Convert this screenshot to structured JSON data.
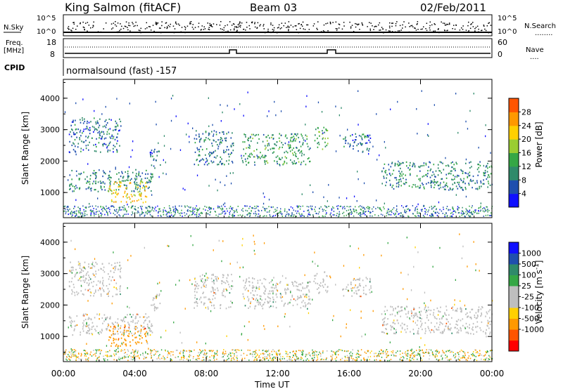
{
  "header": {
    "station": "King Salmon (fitACF)",
    "beam": "Beam 03",
    "date": "02/Feb/2011"
  },
  "noise_panel": {
    "left_label": "N.Sky",
    "right_label": "N.Search",
    "right_line": "........",
    "left_ticks": [
      "10^5",
      "10^0"
    ],
    "right_ticks": [
      "10^5",
      "10^0"
    ]
  },
  "freq_panel": {
    "left_label_1": "Freq.",
    "left_label_2": "[MHz]",
    "right_label": "Nave",
    "right_line": "....",
    "left_ticks": [
      "18",
      "8"
    ],
    "right_ticks": [
      "60",
      "0"
    ]
  },
  "cpid_panel": {
    "label": "CPID",
    "text": "normalsound (fast) -157"
  },
  "colors": {
    "power": [
      "#1010ff",
      "#1f4fae",
      "#2f8a6a",
      "#35a745",
      "#9acd32",
      "#ffd000",
      "#ff9900",
      "#ff5500",
      "#ff0000"
    ],
    "velocity": [
      "#ff0000",
      "#ff5500",
      "#ff9900",
      "#ffd000",
      "#bebebe",
      "#bebebe",
      "#35a745",
      "#2f8a6a",
      "#1f4fae",
      "#1010ff"
    ]
  },
  "chart_data": [
    {
      "type": "heatmap",
      "name": "power",
      "xlabel": "",
      "ylabel": "Slant Range [km]",
      "x_ticks": [
        "00:00",
        "04:00",
        "08:00",
        "12:00",
        "16:00",
        "20:00",
        "00:00"
      ],
      "y_ticks": [
        1000,
        2000,
        3000,
        4000
      ],
      "ylim": [
        200,
        4600
      ],
      "xlim_hours": [
        0,
        24
      ],
      "colorbar": {
        "label": "Power [dB]",
        "ticks": [
          4,
          8,
          12,
          16,
          20,
          24,
          28
        ],
        "range": [
          0,
          32
        ]
      },
      "regions": [
        {
          "t": [
            0.3,
            5.0
          ],
          "r": [
            1050,
            1750
          ],
          "value": 10
        },
        {
          "t": [
            0.3,
            3.2
          ],
          "r": [
            2300,
            3400
          ],
          "value": 8
        },
        {
          "t": [
            2.5,
            4.7
          ],
          "r": [
            700,
            1400
          ],
          "value": 22
        },
        {
          "t": [
            4.8,
            5.4
          ],
          "r": [
            1800,
            2400
          ],
          "value": 8
        },
        {
          "t": [
            7.3,
            9.5
          ],
          "r": [
            1900,
            3000
          ],
          "value": 9
        },
        {
          "t": [
            10.0,
            13.8
          ],
          "r": [
            1900,
            2900
          ],
          "value": 12
        },
        {
          "t": [
            14.0,
            14.8
          ],
          "r": [
            2400,
            3100
          ],
          "value": 14
        },
        {
          "t": [
            15.6,
            17.2
          ],
          "r": [
            2300,
            2900
          ],
          "value": 8
        },
        {
          "t": [
            17.8,
            24.0
          ],
          "r": [
            1100,
            2000
          ],
          "value": 10
        }
      ]
    },
    {
      "type": "heatmap",
      "name": "velocity",
      "xlabel": "Time UT",
      "ylabel": "Slant Range [km]",
      "x_ticks": [
        "00:00",
        "04:00",
        "08:00",
        "12:00",
        "16:00",
        "20:00",
        "00:00"
      ],
      "y_ticks": [
        1000,
        2000,
        3000,
        4000
      ],
      "ylim": [
        200,
        4600
      ],
      "xlim_hours": [
        0,
        24
      ],
      "colorbar": {
        "label": "Velocity [m s^-1]",
        "ticks": [
          1000,
          500,
          100,
          25,
          -25,
          -100,
          -500,
          -1000
        ]
      },
      "regions": [
        {
          "t": [
            0.3,
            5.0
          ],
          "r": [
            1050,
            1750
          ],
          "value": 0
        },
        {
          "t": [
            0.3,
            3.2
          ],
          "r": [
            2300,
            3400
          ],
          "value": 0
        },
        {
          "t": [
            2.5,
            4.7
          ],
          "r": [
            700,
            1400
          ],
          "value": -300
        },
        {
          "t": [
            4.8,
            5.4
          ],
          "r": [
            1800,
            2400
          ],
          "value": 0
        },
        {
          "t": [
            7.3,
            9.5
          ],
          "r": [
            1900,
            3000
          ],
          "value": 0
        },
        {
          "t": [
            10.0,
            13.8
          ],
          "r": [
            1900,
            2900
          ],
          "value": 0
        },
        {
          "t": [
            14.0,
            14.8
          ],
          "r": [
            2400,
            3100
          ],
          "value": 0
        },
        {
          "t": [
            15.6,
            17.2
          ],
          "r": [
            2300,
            2900
          ],
          "value": 0
        },
        {
          "t": [
            17.8,
            24.0
          ],
          "r": [
            1100,
            2000
          ],
          "value": 0
        }
      ]
    }
  ]
}
